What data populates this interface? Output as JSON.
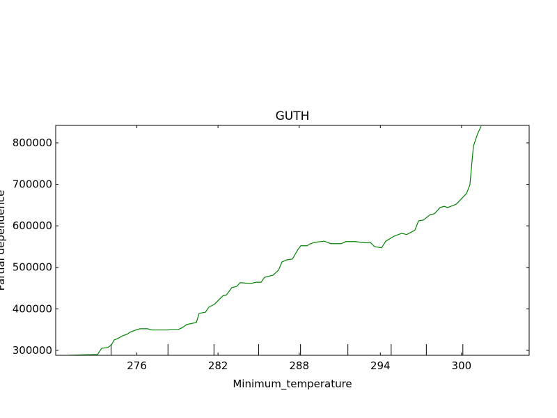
{
  "chart_data": {
    "type": "line",
    "title": "GUTH",
    "x_label": "Minimum_temperature",
    "y_label": "Partial dependence",
    "xlim": [
      270,
      305
    ],
    "ylim": [
      288000,
      842000
    ],
    "xticks": [
      276,
      282,
      288,
      294,
      300
    ],
    "yticks": [
      300000,
      400000,
      500000,
      600000,
      700000,
      800000
    ],
    "deciles": [
      274.1,
      278.3,
      281.7,
      285.0,
      288.1,
      291.6,
      294.8,
      297.4,
      300.1
    ],
    "series": [
      {
        "name": "Partial dependence",
        "color": "#008000",
        "x": [
          270.88,
          273.09,
          273.4,
          273.86,
          274.12,
          274.32,
          274.63,
          274.94,
          275.3,
          275.51,
          275.92,
          276.23,
          276.79,
          277.1,
          277.72,
          278.24,
          278.65,
          279.06,
          279.37,
          279.68,
          280.09,
          280.4,
          280.6,
          281.07,
          281.32,
          281.74,
          282.35,
          282.61,
          283.02,
          283.38,
          283.64,
          284.41,
          284.82,
          285.18,
          285.44,
          286.06,
          286.47,
          286.73,
          287.09,
          287.5,
          287.91,
          288.12,
          288.58,
          288.84,
          289.15,
          289.56,
          289.87,
          290.33,
          291.1,
          291.46,
          292.13,
          292.65,
          292.96,
          293.26,
          293.57,
          294.09,
          294.4,
          295.01,
          295.58,
          295.94,
          296.25,
          296.56,
          296.82,
          297.18,
          297.69,
          298.0,
          298.41,
          298.72,
          298.98,
          299.6,
          299.96,
          300.37,
          300.62,
          300.88,
          301.19,
          301.45
        ],
        "values": [
          288000,
          290000,
          305000,
          307000,
          313000,
          325000,
          329000,
          335000,
          339000,
          344000,
          349000,
          352000,
          352000,
          349000,
          349000,
          349000,
          350000,
          350000,
          355000,
          362000,
          365000,
          367000,
          389000,
          392000,
          404000,
          411000,
          431000,
          433000,
          451000,
          454000,
          463000,
          461000,
          464000,
          464000,
          476000,
          481000,
          493000,
          513000,
          518000,
          520000,
          543000,
          552000,
          552000,
          557000,
          560000,
          562000,
          563000,
          557000,
          557000,
          562000,
          562000,
          560000,
          559000,
          560000,
          550000,
          547000,
          563000,
          575000,
          582000,
          579000,
          584000,
          590000,
          612000,
          614000,
          627000,
          629000,
          644000,
          647000,
          644000,
          652000,
          664000,
          678000,
          699000,
          792000,
          822000,
          840000
        ]
      }
    ]
  }
}
